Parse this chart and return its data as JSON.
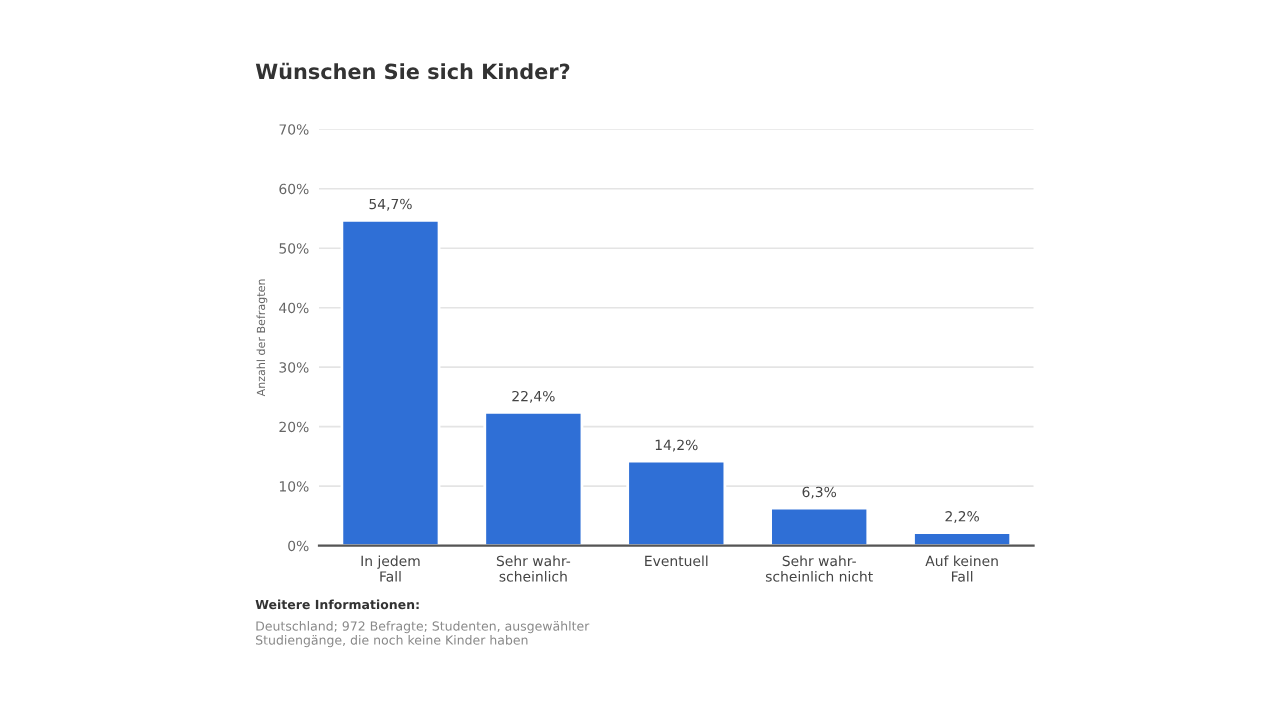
{
  "chart_data": {
    "type": "bar",
    "title": "Wünschen Sie sich Kinder?",
    "ylabel": "Anzahl der Befragten",
    "categories": [
      "In jedem\nFall",
      "Sehr wahr-\nscheinlich",
      "Eventuell",
      "Sehr wahr-\nscheinlich nicht",
      "Auf keinen\nFall"
    ],
    "values": [
      54.7,
      22.4,
      14.2,
      6.3,
      2.2
    ],
    "value_labels": [
      "54,7%",
      "22,4%",
      "14,2%",
      "6,3%",
      "2,2%"
    ],
    "color": "#2f6fd6",
    "ylim": [
      0,
      70
    ],
    "yticks": [
      {
        "value": 0,
        "label": "0%"
      },
      {
        "value": 10,
        "label": "10%"
      },
      {
        "value": 20,
        "label": "20%"
      },
      {
        "value": 30,
        "label": "30%"
      },
      {
        "value": 40,
        "label": "40%"
      },
      {
        "value": 50,
        "label": "50%"
      },
      {
        "value": 60,
        "label": "60%"
      },
      {
        "value": 70,
        "label": "70%"
      }
    ],
    "grid": "y",
    "annotations": [
      "Weitere Informationen:",
      "Deutschland; 972 Befragte; Studenten, ausgewählter\nStudiengänge, die noch keine Kinder haben"
    ]
  }
}
